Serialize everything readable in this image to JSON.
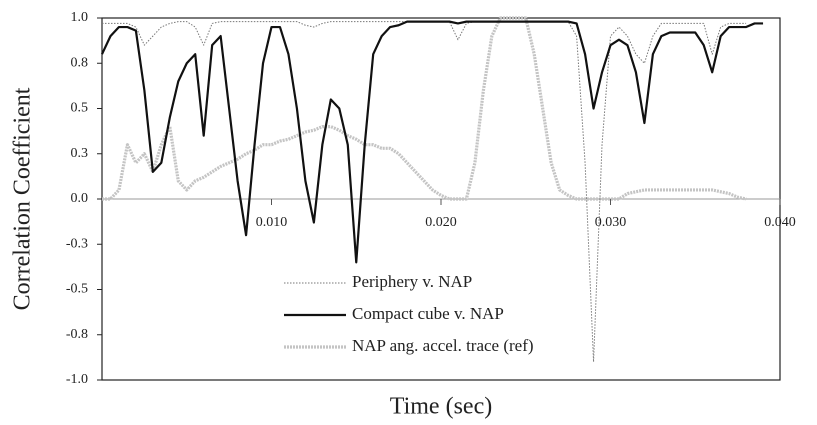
{
  "chart_data": {
    "type": "line",
    "xlabel": "Time (sec)",
    "ylabel": "Correlation Coefficient",
    "x": [
      0,
      0.0005,
      0.001,
      0.0015,
      0.002,
      0.0025,
      0.003,
      0.0035,
      0.004,
      0.0045,
      0.005,
      0.0055,
      0.006,
      0.0065,
      0.007,
      0.0075,
      0.008,
      0.0085,
      0.009,
      0.0095,
      0.01,
      0.0105,
      0.011,
      0.0115,
      0.012,
      0.0125,
      0.013,
      0.0135,
      0.014,
      0.0145,
      0.015,
      0.0155,
      0.016,
      0.0165,
      0.017,
      0.0175,
      0.018,
      0.0185,
      0.019,
      0.0195,
      0.02,
      0.0205,
      0.021,
      0.0215,
      0.022,
      0.0225,
      0.023,
      0.0235,
      0.024,
      0.0245,
      0.025,
      0.0255,
      0.026,
      0.0265,
      0.027,
      0.0275,
      0.028,
      0.0285,
      0.029,
      0.0295,
      0.03,
      0.0305,
      0.031,
      0.0315,
      0.032,
      0.0325,
      0.033,
      0.0335,
      0.034,
      0.0345,
      0.035,
      0.0355,
      0.036,
      0.0365,
      0.037,
      0.0375,
      0.038,
      0.0385,
      0.039,
      0.0395,
      0.04
    ],
    "series": [
      {
        "name": "NAP ang. accel. trace (ref)",
        "color": "#c4c4c4",
        "linestyle": "thick",
        "values": [
          0,
          0,
          0.05,
          0.3,
          0.2,
          0.25,
          0.15,
          0.3,
          0.4,
          0.1,
          0.05,
          0.1,
          0.12,
          0.15,
          0.18,
          0.2,
          0.22,
          0.25,
          0.27,
          0.3,
          0.3,
          0.32,
          0.33,
          0.35,
          0.37,
          0.38,
          0.4,
          0.4,
          0.38,
          0.35,
          0.33,
          0.3,
          0.3,
          0.28,
          0.28,
          0.25,
          0.2,
          0.15,
          0.1,
          0.05,
          0.02,
          0,
          0,
          0,
          0.2,
          0.6,
          0.9,
          1.0,
          1.0,
          1.0,
          1.0,
          0.8,
          0.5,
          0.2,
          0.05,
          0.02,
          0,
          0,
          0,
          0,
          0,
          0,
          0.03,
          0.04,
          0.05,
          0.05,
          0.05,
          0.05,
          0.05,
          0.05,
          0.05,
          0.05,
          0.05,
          0.04,
          0.03,
          0.01,
          0,
          null,
          null,
          null,
          null
        ]
      },
      {
        "name": "Periphery v. NAP",
        "color": "#777777",
        "linestyle": "dotted",
        "values": [
          0.97,
          0.97,
          0.97,
          0.97,
          0.95,
          0.85,
          0.9,
          0.95,
          0.97,
          0.98,
          0.98,
          0.95,
          0.85,
          0.97,
          0.98,
          0.98,
          0.98,
          0.98,
          0.98,
          0.98,
          0.98,
          0.98,
          0.98,
          0.98,
          0.96,
          0.95,
          0.97,
          0.98,
          0.98,
          0.98,
          0.98,
          0.98,
          0.98,
          0.98,
          0.98,
          0.98,
          0.98,
          0.98,
          0.98,
          0.98,
          0.98,
          0.98,
          0.88,
          0.97,
          0.98,
          0.98,
          0.98,
          0.98,
          0.98,
          0.98,
          0.98,
          0.98,
          0.98,
          0.98,
          0.98,
          0.98,
          0.9,
          0.2,
          -0.9,
          0.3,
          0.9,
          0.95,
          0.9,
          0.8,
          0.75,
          0.9,
          0.97,
          0.97,
          0.97,
          0.97,
          0.97,
          0.97,
          0.8,
          0.95,
          0.97,
          0.97,
          0.97,
          null,
          null,
          null,
          null
        ]
      },
      {
        "name": "Compact cube v. NAP",
        "color": "#111111",
        "linestyle": "solid",
        "values": [
          0.8,
          0.9,
          0.95,
          0.95,
          0.93,
          0.6,
          0.15,
          0.2,
          0.45,
          0.65,
          0.75,
          0.8,
          0.35,
          0.85,
          0.9,
          0.5,
          0.1,
          -0.2,
          0.3,
          0.75,
          0.95,
          0.95,
          0.8,
          0.5,
          0.1,
          -0.13,
          0.3,
          0.55,
          0.5,
          0.3,
          -0.35,
          0.3,
          0.8,
          0.9,
          0.95,
          0.96,
          0.98,
          0.98,
          0.98,
          0.98,
          0.98,
          0.98,
          0.97,
          0.98,
          0.98,
          0.98,
          0.98,
          0.98,
          0.98,
          0.98,
          0.98,
          0.98,
          0.98,
          0.98,
          0.98,
          0.98,
          0.97,
          0.8,
          0.5,
          0.7,
          0.85,
          0.88,
          0.85,
          0.7,
          0.42,
          0.8,
          0.9,
          0.92,
          0.92,
          0.92,
          0.92,
          0.85,
          0.7,
          0.9,
          0.95,
          0.95,
          0.95,
          0.97,
          0.97,
          null,
          null
        ]
      }
    ],
    "xlim": [
      0,
      0.04
    ],
    "xticks": [
      {
        "value": 0.01,
        "label": "0.010"
      },
      {
        "value": 0.02,
        "label": "0.020"
      },
      {
        "value": 0.03,
        "label": "0.030"
      },
      {
        "value": 0.04,
        "label": "0.040"
      }
    ],
    "ylim": [
      -1,
      1
    ],
    "yticks": [
      {
        "value": 1,
        "label": "1.0"
      },
      {
        "value": 0.75,
        "label": "0.8"
      },
      {
        "value": 0.5,
        "label": "0.5"
      },
      {
        "value": 0.25,
        "label": "0.3"
      },
      {
        "value": 0,
        "label": "0.0"
      },
      {
        "value": -0.25,
        "label": "-0.3"
      },
      {
        "value": -0.5,
        "label": "-0.5"
      },
      {
        "value": -0.75,
        "label": "-0.8"
      },
      {
        "value": -1,
        "label": "-1.0"
      }
    ],
    "legend": "lower center",
    "legend_order": [
      1,
      2,
      0
    ],
    "grid": false
  }
}
